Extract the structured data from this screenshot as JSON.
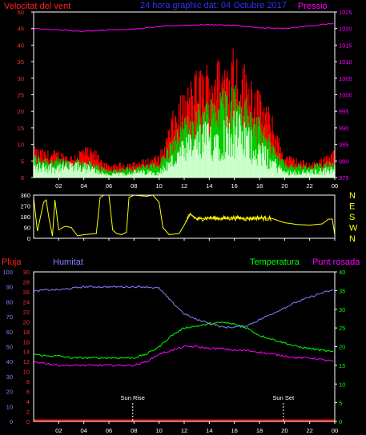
{
  "chart_data": [
    {
      "type": "line",
      "title": "24 hora graphic dat: 04 Octubre 2017",
      "left_axis_label": "Velocitat del vent",
      "right_axis_label": "Pressió",
      "ylim_left": [
        0,
        50
      ],
      "left_ticks": [
        "0",
        "5",
        "10",
        "15",
        "20",
        "25",
        "30",
        "35",
        "40",
        "45",
        "50"
      ],
      "ylim_right": [
        975,
        1025
      ],
      "right_ticks": [
        "975",
        "980",
        "985",
        "990",
        "995",
        "1000",
        "1005",
        "1010",
        "1015",
        "1020",
        "1025"
      ],
      "x_ticks": [
        "02",
        "04",
        "06",
        "08",
        "10",
        "12",
        "14",
        "16",
        "18",
        "20",
        "22",
        "00"
      ],
      "x_tick_hours": [
        2,
        4,
        6,
        8,
        10,
        12,
        14,
        16,
        18,
        20,
        22,
        24
      ],
      "xlim": [
        0,
        24
      ],
      "colors": {
        "gust": "#ff0000",
        "wind": "#00cc00",
        "avg": "#ccffcc",
        "pressure": "#ff00ff"
      },
      "pressure_points": [
        [
          0,
          1020.0
        ],
        [
          2,
          1019.6
        ],
        [
          4,
          1019.2
        ],
        [
          6,
          1019.6
        ],
        [
          8,
          1019.8
        ],
        [
          10,
          1020.6
        ],
        [
          12,
          1021.0
        ],
        [
          14,
          1021.2
        ],
        [
          16,
          1021.0
        ],
        [
          18,
          1020.2
        ],
        [
          20,
          1020.0
        ],
        [
          22,
          1020.8
        ],
        [
          24,
          1021.6
        ]
      ],
      "gust_envelope": [
        [
          0,
          8
        ],
        [
          1,
          7
        ],
        [
          2,
          7
        ],
        [
          3,
          6
        ],
        [
          4,
          8
        ],
        [
          5,
          7
        ],
        [
          6,
          3
        ],
        [
          7,
          4
        ],
        [
          8,
          4
        ],
        [
          9,
          5
        ],
        [
          10,
          6
        ],
        [
          10.5,
          10
        ],
        [
          11,
          16
        ],
        [
          11.5,
          20
        ],
        [
          12,
          22
        ],
        [
          12.5,
          25
        ],
        [
          13,
          28
        ],
        [
          13.5,
          29
        ],
        [
          14,
          30
        ],
        [
          14.5,
          31
        ],
        [
          15,
          30
        ],
        [
          15.5,
          33
        ],
        [
          16,
          34
        ],
        [
          16.5,
          30
        ],
        [
          17,
          29
        ],
        [
          17.5,
          27
        ],
        [
          18,
          22
        ],
        [
          18.5,
          20
        ],
        [
          19,
          16
        ],
        [
          19.5,
          11
        ],
        [
          20,
          6
        ],
        [
          21,
          5
        ],
        [
          22,
          4
        ],
        [
          23,
          5
        ],
        [
          23.5,
          7
        ],
        [
          24,
          7
        ]
      ],
      "wind_envelope": [
        [
          0,
          6
        ],
        [
          2,
          5
        ],
        [
          4,
          5
        ],
        [
          6,
          2
        ],
        [
          8,
          3
        ],
        [
          10,
          4
        ],
        [
          11,
          10
        ],
        [
          12,
          15
        ],
        [
          13,
          19
        ],
        [
          14,
          21
        ],
        [
          15,
          23
        ],
        [
          16,
          25
        ],
        [
          17,
          20
        ],
        [
          18,
          15
        ],
        [
          19,
          10
        ],
        [
          20,
          4
        ],
        [
          22,
          3
        ],
        [
          24,
          5
        ]
      ],
      "avg_envelope": [
        [
          0,
          4
        ],
        [
          2,
          4
        ],
        [
          4,
          4
        ],
        [
          6,
          1
        ],
        [
          8,
          2
        ],
        [
          10,
          2
        ],
        [
          11,
          6
        ],
        [
          12,
          10
        ],
        [
          13,
          13
        ],
        [
          14,
          15
        ],
        [
          15,
          16
        ],
        [
          16,
          18
        ],
        [
          17,
          14
        ],
        [
          18,
          10
        ],
        [
          19,
          6
        ],
        [
          20,
          2
        ],
        [
          22,
          2
        ],
        [
          24,
          3
        ]
      ]
    },
    {
      "type": "line",
      "left_ticks": [
        "0",
        "90",
        "180",
        "270",
        "360"
      ],
      "ylim": [
        0,
        360
      ],
      "right_labels": [
        "N",
        "W",
        "S",
        "E",
        "N"
      ],
      "x_ticks": [
        "02",
        "04",
        "06",
        "08",
        "10",
        "12",
        "14",
        "16",
        "18",
        "20",
        "22",
        "00"
      ],
      "xlim": [
        0,
        24
      ],
      "color": "#ffff00",
      "direction_points": [
        [
          0,
          340
        ],
        [
          0.3,
          60
        ],
        [
          0.8,
          300
        ],
        [
          1.0,
          320
        ],
        [
          1.2,
          180
        ],
        [
          1.5,
          20
        ],
        [
          1.7,
          320
        ],
        [
          2.0,
          70
        ],
        [
          2.5,
          100
        ],
        [
          3.0,
          90
        ],
        [
          3.5,
          20
        ],
        [
          4.0,
          30
        ],
        [
          5.0,
          40
        ],
        [
          5.3,
          340
        ],
        [
          5.6,
          360
        ],
        [
          6.0,
          360
        ],
        [
          6.3,
          70
        ],
        [
          6.6,
          40
        ],
        [
          7.0,
          30
        ],
        [
          7.4,
          50
        ],
        [
          7.6,
          340
        ],
        [
          8.0,
          360
        ],
        [
          8.5,
          355
        ],
        [
          9.0,
          350
        ],
        [
          9.5,
          360
        ],
        [
          10.0,
          300
        ],
        [
          10.3,
          90
        ],
        [
          10.8,
          30
        ],
        [
          11.6,
          40
        ],
        [
          12.0,
          110
        ],
        [
          12.2,
          150
        ],
        [
          12.5,
          200
        ],
        [
          13.0,
          160
        ],
        [
          14.0,
          170
        ],
        [
          15.0,
          165
        ],
        [
          16.0,
          170
        ],
        [
          17.0,
          165
        ],
        [
          18.0,
          170
        ],
        [
          19.0,
          165
        ],
        [
          20.0,
          130
        ],
        [
          21.0,
          115
        ],
        [
          22.0,
          110
        ],
        [
          23.0,
          120
        ],
        [
          23.5,
          160
        ],
        [
          23.8,
          160
        ],
        [
          24.0,
          30
        ]
      ]
    },
    {
      "type": "line",
      "left_axis_label": "Pluja",
      "second_axis_label": "Humitat",
      "temperature_label": "Temperatura",
      "dewpoint_label": "Punt rosada",
      "rain_ticks": [
        "0",
        "2",
        "4",
        "6",
        "8",
        "10",
        "12",
        "14",
        "16",
        "18",
        "20",
        "22",
        "24",
        "26",
        "28",
        "30"
      ],
      "humidity_ticks": [
        "0",
        "10",
        "20",
        "30",
        "40",
        "50",
        "60",
        "70",
        "80",
        "90",
        "100"
      ],
      "right_ticks": [
        "0",
        "5",
        "10",
        "15",
        "20",
        "25",
        "30",
        "35",
        "40"
      ],
      "ylim_humidity": [
        0,
        100
      ],
      "ylim_temperature": [
        0,
        40
      ],
      "x_ticks": [
        "02",
        "04",
        "06",
        "08",
        "10",
        "12",
        "14",
        "16",
        "18",
        "20",
        "22",
        "00"
      ],
      "xlim": [
        0,
        24
      ],
      "sunrise_label": "Sun Rise",
      "sunset_label": "Sun Set",
      "sunrise_hour": 7.9,
      "sunset_hour": 19.9,
      "colors": {
        "humidity": "#8080ff",
        "temperature": "#00ff00",
        "dewpoint": "#ff00ff",
        "rain": "#ff0000"
      },
      "humidity_points": [
        [
          0,
          87
        ],
        [
          1,
          88
        ],
        [
          2,
          88
        ],
        [
          3,
          89
        ],
        [
          4,
          90
        ],
        [
          5,
          90
        ],
        [
          6,
          90
        ],
        [
          7,
          90
        ],
        [
          8,
          90
        ],
        [
          9,
          90
        ],
        [
          10,
          89
        ],
        [
          11,
          80
        ],
        [
          12,
          72
        ],
        [
          13,
          68
        ],
        [
          14,
          66
        ],
        [
          15,
          63
        ],
        [
          16,
          63
        ],
        [
          17,
          64
        ],
        [
          18,
          68
        ],
        [
          19,
          72
        ],
        [
          20,
          76
        ],
        [
          21,
          80
        ],
        [
          22,
          83
        ],
        [
          23,
          86
        ],
        [
          24,
          88
        ]
      ],
      "temperature_points": [
        [
          0,
          18
        ],
        [
          1,
          17.5
        ],
        [
          2,
          17.5
        ],
        [
          3,
          17
        ],
        [
          4,
          17
        ],
        [
          5,
          17
        ],
        [
          6,
          17
        ],
        [
          7,
          17
        ],
        [
          8,
          17
        ],
        [
          9,
          18
        ],
        [
          10,
          20
        ],
        [
          11,
          23
        ],
        [
          12,
          25
        ],
        [
          13,
          25.5
        ],
        [
          14,
          26
        ],
        [
          15,
          26.5
        ],
        [
          16,
          26
        ],
        [
          17,
          25
        ],
        [
          18,
          23
        ],
        [
          19,
          22
        ],
        [
          20,
          21
        ],
        [
          21,
          20
        ],
        [
          22,
          19.5
        ],
        [
          23,
          19
        ],
        [
          24,
          18.5
        ]
      ],
      "dewpoint_points": [
        [
          0,
          16
        ],
        [
          1,
          15.5
        ],
        [
          2,
          15
        ],
        [
          3,
          15
        ],
        [
          4,
          15
        ],
        [
          5,
          15
        ],
        [
          6,
          15
        ],
        [
          7,
          15
        ],
        [
          8,
          15
        ],
        [
          9,
          16
        ],
        [
          10,
          18
        ],
        [
          11,
          19
        ],
        [
          12,
          20
        ],
        [
          13,
          20
        ],
        [
          14,
          19.5
        ],
        [
          15,
          19.5
        ],
        [
          16,
          19
        ],
        [
          17,
          19
        ],
        [
          18,
          18.5
        ],
        [
          19,
          18
        ],
        [
          20,
          17.5
        ],
        [
          21,
          17
        ],
        [
          22,
          17
        ],
        [
          23,
          16.5
        ],
        [
          24,
          16
        ]
      ],
      "rain_points": [
        [
          0,
          0
        ],
        [
          24,
          0
        ]
      ]
    }
  ]
}
